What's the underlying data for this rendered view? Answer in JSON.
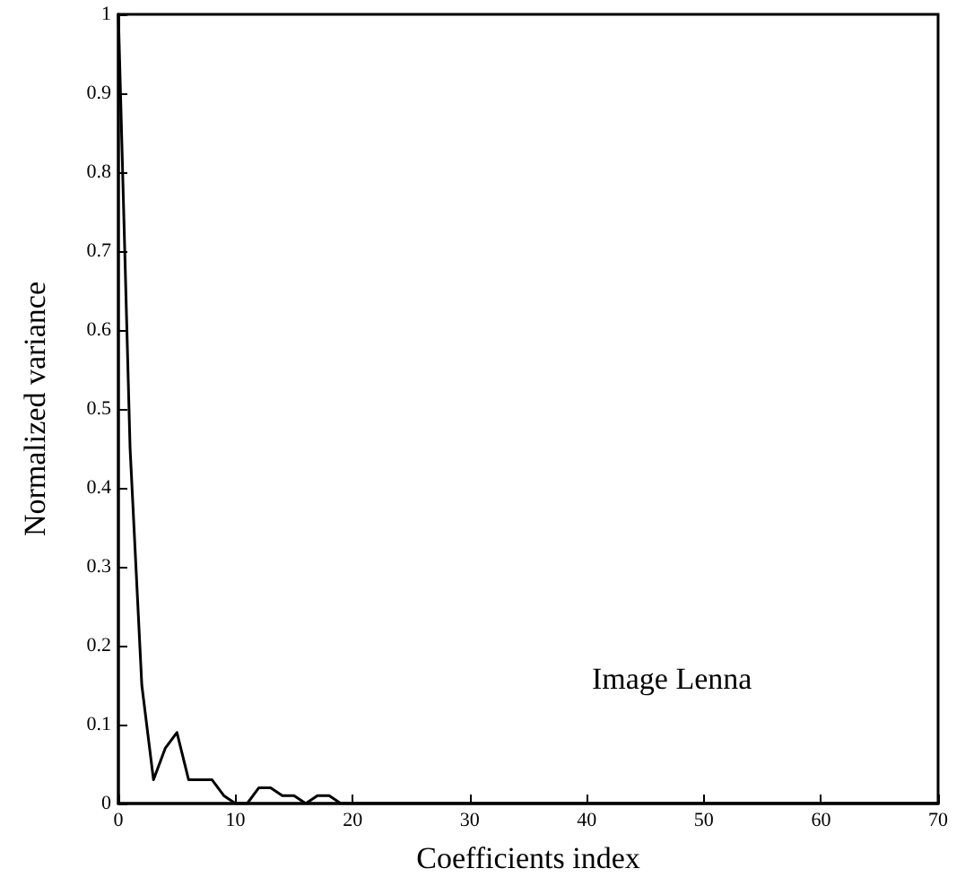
{
  "chart_data": {
    "type": "line",
    "xlabel": "Coefficients index",
    "ylabel": "Normalized variance",
    "annotations": [
      "Image Lenna"
    ],
    "x": [
      0,
      1,
      2,
      3,
      4,
      5,
      6,
      7,
      8,
      9,
      10,
      11,
      12,
      13,
      14,
      15,
      16,
      17,
      18,
      19,
      20,
      25,
      30,
      40,
      50,
      60,
      70
    ],
    "series": [
      {
        "color": "#000000",
        "values": [
          1,
          0.45,
          0.15,
          0.03,
          0.07,
          0.09,
          0.03,
          0.03,
          0.03,
          0.01,
          0,
          0,
          0.02,
          0.02,
          0.01,
          0.01,
          0,
          0.01,
          0.01,
          0,
          0,
          0,
          0,
          0,
          0,
          0,
          0
        ]
      }
    ],
    "xlim": [
      0,
      70
    ],
    "xticks": [
      0,
      10,
      20,
      30,
      40,
      50,
      60,
      70
    ],
    "ylim": [
      0,
      1
    ],
    "yticks": [
      0,
      0.1,
      0.2,
      0.3,
      0.4,
      0.5,
      0.6,
      0.7,
      0.8,
      0.9,
      1
    ],
    "grid": false,
    "marker": "none",
    "line_style": "solid"
  }
}
